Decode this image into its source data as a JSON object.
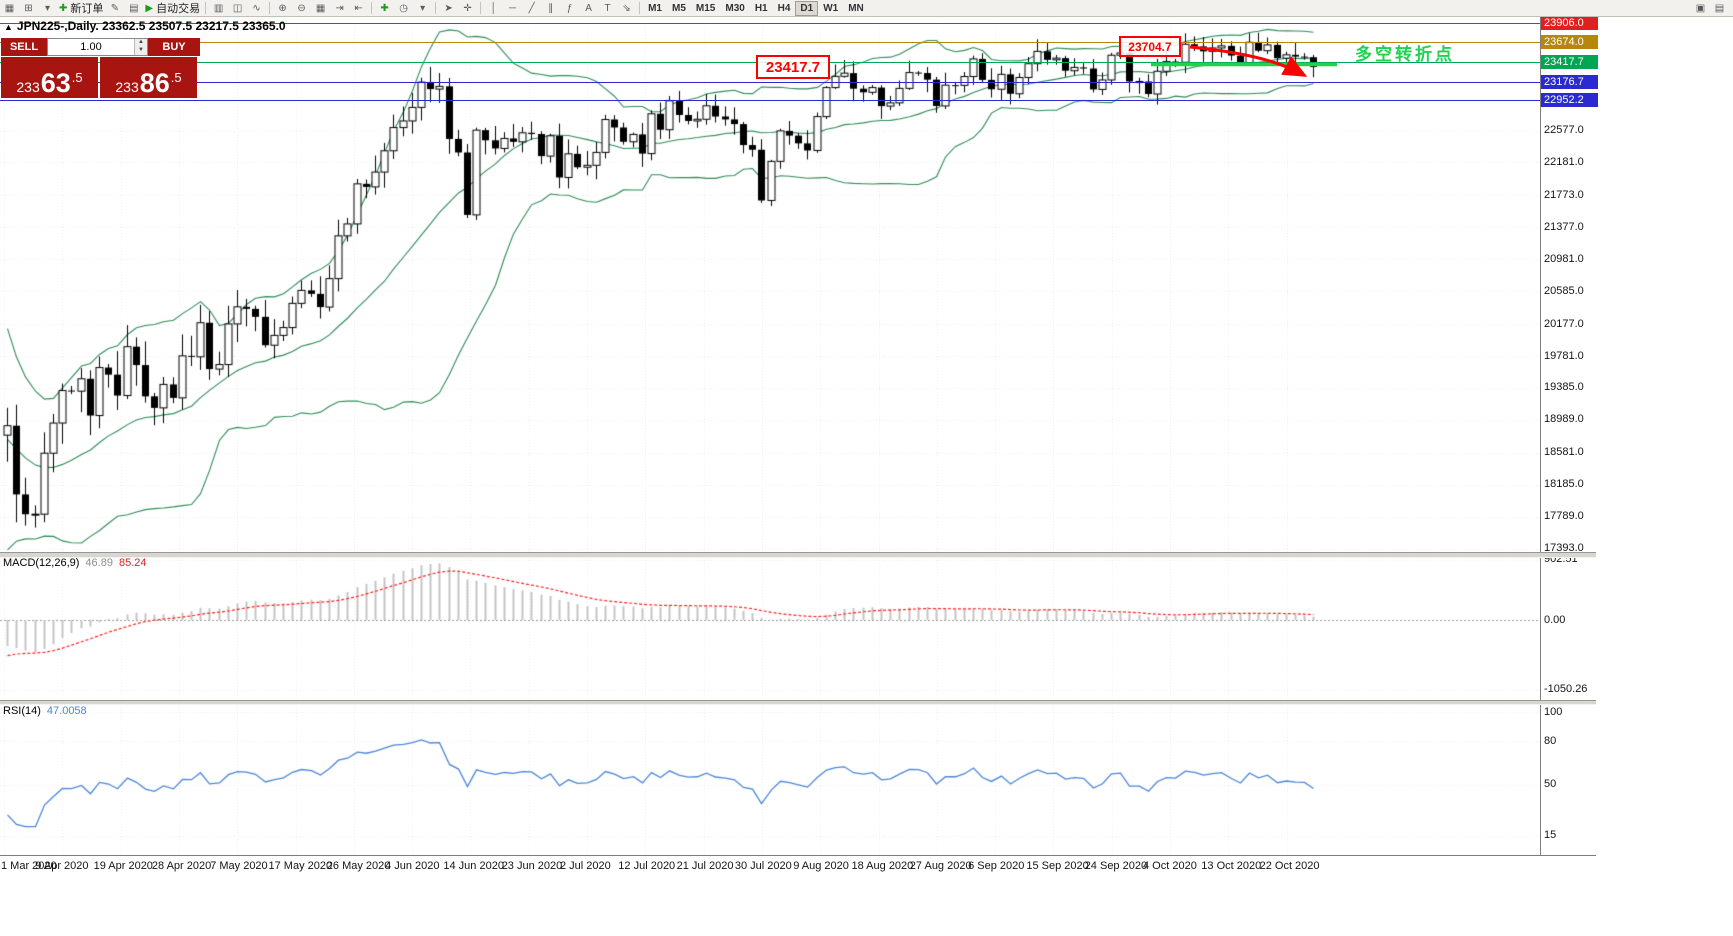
{
  "toolbar": {
    "icons": [
      {
        "name": "market-watch-icon",
        "glyph": "▦"
      },
      {
        "name": "new-chart-icon",
        "glyph": "⊞"
      },
      {
        "name": "chart-list-dropdown-icon",
        "glyph": "▾"
      },
      {
        "name": "new-order-button",
        "glyph": "✚",
        "label": "新订单",
        "accent": "#1a9c1a"
      },
      {
        "name": "metaeditor-icon",
        "glyph": "✎"
      },
      {
        "name": "terminal-icon",
        "glyph": "▤"
      },
      {
        "name": "autotrade-button",
        "glyph": "▶",
        "label": "自动交易",
        "accent": "#1a9c1a"
      },
      {
        "name": "sep"
      },
      {
        "name": "bar-chart-icon",
        "glyph": "▥"
      },
      {
        "name": "candle-chart-icon",
        "glyph": "◫"
      },
      {
        "name": "line-chart-icon",
        "glyph": "∿"
      },
      {
        "name": "sep"
      },
      {
        "name": "zoom-in-icon",
        "glyph": "⊕"
      },
      {
        "name": "zoom-out-icon",
        "glyph": "⊖"
      },
      {
        "name": "tile-windows-icon",
        "glyph": "▦"
      },
      {
        "name": "auto-scroll-icon",
        "glyph": "⇥"
      },
      {
        "name": "chart-shift-icon",
        "glyph": "⇤"
      },
      {
        "name": "sep"
      },
      {
        "name": "indicators-add-icon",
        "glyph": "✚",
        "accent": "#1a9c1a"
      },
      {
        "name": "periods-icon",
        "glyph": "◷"
      },
      {
        "name": "templates-icon",
        "glyph": "▾"
      },
      {
        "name": "sep"
      },
      {
        "name": "cursor-icon",
        "glyph": "➤"
      },
      {
        "name": "crosshair-icon",
        "glyph": "✛"
      },
      {
        "name": "sep"
      },
      {
        "name": "vertical-line-icon",
        "glyph": "│"
      },
      {
        "name": "horizontal-line-icon",
        "glyph": "─"
      },
      {
        "name": "trendline-icon",
        "glyph": "╱"
      },
      {
        "name": "channel-icon",
        "glyph": "∥"
      },
      {
        "name": "fibonacci-icon",
        "glyph": "ƒ"
      },
      {
        "name": "text-icon",
        "glyph": "A"
      },
      {
        "name": "label-icon",
        "glyph": "T"
      },
      {
        "name": "arrows-icon",
        "glyph": "⇘"
      },
      {
        "name": "sep"
      }
    ],
    "timeframes": [
      "M1",
      "M5",
      "M15",
      "M30",
      "H1",
      "H4",
      "D1",
      "W1",
      "MN"
    ],
    "active_timeframe": "D1",
    "right_icons": [
      {
        "name": "fullscreen-icon",
        "glyph": "▣"
      },
      {
        "name": "data-window-icon",
        "glyph": "▤"
      }
    ]
  },
  "chart_header": {
    "collapse_icon": "▲",
    "title": "JPN225-,Daily. 23362.5 23507.5 23217.5 23365.0"
  },
  "trade_panel": {
    "sell_label": "SELL",
    "buy_label": "BUY",
    "lot_value": "1.00",
    "bid_prefix": "233",
    "bid_big": "63",
    "bid_frac": ".5",
    "ask_prefix": "233",
    "ask_big": "86",
    "ask_frac": ".5"
  },
  "annotations": {
    "level_top": "23704.7",
    "level_main": "23417.7",
    "note": "多空转折点",
    "note_color": "#1fd24f",
    "arrow_color": "#ff0000",
    "trend_line_color": "#1fd24f"
  },
  "price_scale": {
    "chips": [
      {
        "text": "23906.0",
        "price": 23906.0,
        "color": "#e02020"
      },
      {
        "text": "23674.0",
        "price": 23674.0,
        "color": "#b8860b"
      },
      {
        "text": "23417.7",
        "price": 23417.7,
        "color": "#00a651"
      },
      {
        "text": "23176.7",
        "price": 23176.7,
        "color": "#2a2ad0"
      },
      {
        "text": "22952.2",
        "price": 22952.2,
        "color": "#2a2ad0"
      }
    ],
    "ticks": [
      {
        "text": "22577.0",
        "price": 22577.0
      },
      {
        "text": "22181.0",
        "price": 22181.0
      },
      {
        "text": "21773.0",
        "price": 21773.0
      },
      {
        "text": "21377.0",
        "price": 21377.0
      },
      {
        "text": "20981.0",
        "price": 20981.0
      },
      {
        "text": "20585.0",
        "price": 20585.0
      },
      {
        "text": "20177.0",
        "price": 20177.0
      },
      {
        "text": "19781.0",
        "price": 19781.0
      },
      {
        "text": "19385.0",
        "price": 19385.0
      },
      {
        "text": "18989.0",
        "price": 18989.0
      },
      {
        "text": "18581.0",
        "price": 18581.0
      },
      {
        "text": "18185.0",
        "price": 18185.0
      },
      {
        "text": "17789.0",
        "price": 17789.0
      },
      {
        "text": "17393.0",
        "price": 17393.0
      }
    ]
  },
  "macd_panel": {
    "label": "MACD(12,26,9)",
    "macd_value": "46.89",
    "signal_value": "85.24",
    "scale": [
      {
        "text": "902.51",
        "value": 902.51
      },
      {
        "text": "0.00",
        "value": 0
      },
      {
        "text": "-1050.26",
        "value": -1050.26
      }
    ]
  },
  "rsi_panel": {
    "label": "RSI(14)",
    "value": "47.0058",
    "scale": [
      {
        "text": "100",
        "value": 100
      },
      {
        "text": "80",
        "value": 80
      },
      {
        "text": "50",
        "value": 50
      },
      {
        "text": "15",
        "value": 15
      }
    ]
  },
  "time_axis": {
    "labels": [
      "1 Mar 2020",
      "9 Apr 2020",
      "19 Apr 2020",
      "28 Apr 2020",
      "7 May 2020",
      "17 May 2020",
      "26 May 2020",
      "4 Jun 2020",
      "14 Jun 2020",
      "23 Jun 2020",
      "2 Jul 2020",
      "12 Jul 2020",
      "21 Jul 2020",
      "30 Jul 2020",
      "9 Aug 2020",
      "18 Aug 2020",
      "27 Aug 2020",
      "6 Sep 2020",
      "15 Sep 2020",
      "24 Sep 2020",
      "4 Oct 2020",
      "13 Oct 2020",
      "22 Oct 2020"
    ]
  },
  "chart_data": {
    "type": "candlestick",
    "symbol": "JPN225-",
    "period": "Daily",
    "ohlc_display": {
      "open": "23362.5",
      "high": "23507.5",
      "low": "23217.5",
      "close": "23365.0"
    },
    "indicators": [
      "Bollinger Bands",
      "MACD(12,26,9)",
      "RSI(14)"
    ],
    "value_axis_range": [
      17351,
      23985
    ],
    "pre_closes": [
      21000,
      20500,
      20000,
      19600,
      19200,
      18900,
      18600,
      18300,
      18100,
      17900,
      17800,
      17900,
      18100,
      18300,
      18500,
      18700,
      18900,
      19000,
      18950,
      18800
    ],
    "closes": [
      18917,
      18065,
      17819,
      17820,
      18576,
      18950,
      19353,
      19345,
      19499,
      19043,
      19638,
      19550,
      19291,
      19897,
      19669,
      19281,
      19138,
      19429,
      19262,
      19783,
      19771,
      20194,
      19619,
      19675,
      20179,
      20391,
      20366,
      20267,
      19915,
      20037,
      20134,
      20434,
      20595,
      20552,
      20388,
      20741,
      21271,
      21419,
      21916,
      21878,
      22062,
      22326,
      22614,
      22696,
      22864,
      23178,
      23091,
      23125,
      22473,
      22305,
      21531,
      22582,
      22456,
      22355,
      22479,
      22437,
      22549,
      22534,
      22260,
      22512,
      21995,
      22288,
      22122,
      22146,
      22306,
      22714,
      22615,
      22438,
      22529,
      22291,
      22785,
      22587,
      22946,
      22770,
      22696,
      22717,
      22884,
      22751,
      22715,
      22657,
      22397,
      22339,
      21710,
      22195,
      22573,
      22514,
      22418,
      22330,
      22750,
      23110,
      23249,
      23289,
      23096,
      23051,
      23110,
      22880,
      22920,
      23100,
      23296,
      23290,
      23208,
      22882,
      23140,
      23138,
      23247,
      23465,
      23205,
      23089,
      23274,
      23033,
      23235,
      23406,
      23559,
      23454,
      23475,
      23319,
      23360,
      23346,
      23087,
      23204,
      23511,
      23539,
      23185,
      23185,
      23030,
      23312,
      23433,
      23423,
      23647,
      23620,
      23559,
      23601,
      23627,
      23507,
      23411,
      23671,
      23567,
      23639,
      23474,
      23516,
      23494,
      23486,
      23365
    ]
  }
}
